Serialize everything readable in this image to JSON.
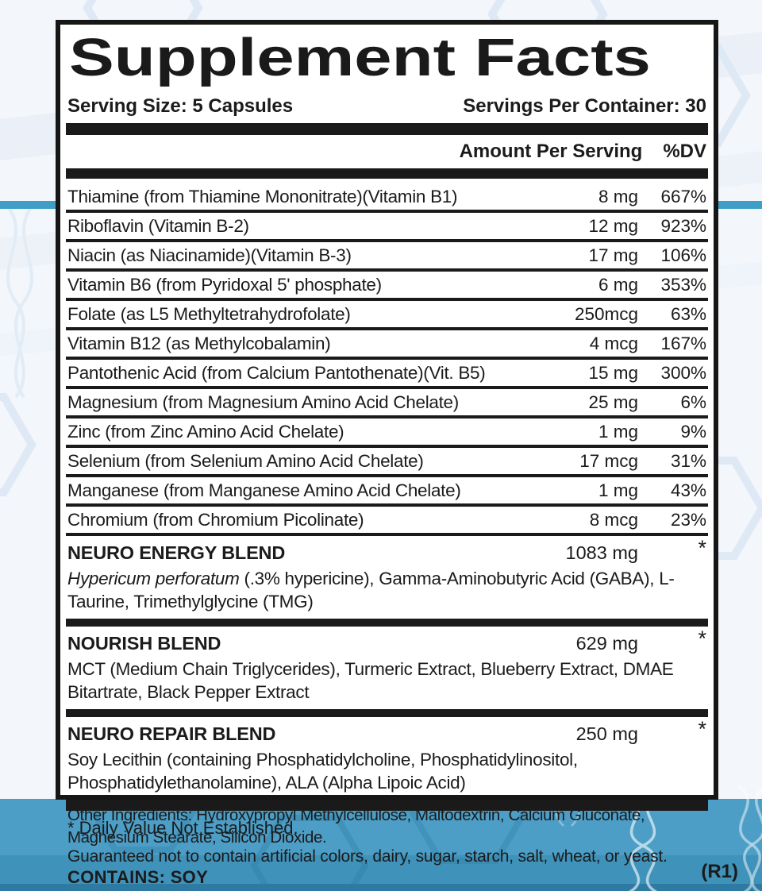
{
  "label": {
    "title": "Supplement Facts",
    "serving_size": "Serving Size: 5 Capsules",
    "servings_per_container": "Servings Per Container: 30",
    "header": {
      "amount": "Amount Per Serving",
      "dv": "%DV"
    },
    "rows": [
      {
        "name": "Thiamine (from Thiamine Mononitrate)(Vitamin B1)",
        "amount": "8 mg",
        "dv": "667%"
      },
      {
        "name": "Riboflavin (Vitamin B-2)",
        "amount": "12 mg",
        "dv": "923%"
      },
      {
        "name": "Niacin (as Niacinamide)(Vitamin B-3)",
        "amount": "17 mg",
        "dv": "106%"
      },
      {
        "name": "Vitamin B6 (from Pyridoxal 5' phosphate)",
        "amount": "6 mg",
        "dv": "353%"
      },
      {
        "name": "Folate (as L5 Methyltetrahydrofolate)",
        "amount": "250mcg",
        "dv": "63%"
      },
      {
        "name": "Vitamin B12 (as Methylcobalamin)",
        "amount": "4 mcg",
        "dv": "167%"
      },
      {
        "name": "Pantothenic Acid (from Calcium Pantothenate)(Vit. B5)",
        "amount": "15 mg",
        "dv": "300%"
      },
      {
        "name": "Magnesium (from Magnesium Amino Acid Chelate)",
        "amount": "25 mg",
        "dv": "6%"
      },
      {
        "name": "Zinc (from Zinc Amino Acid Chelate)",
        "amount": "1 mg",
        "dv": "9%"
      },
      {
        "name": "Selenium (from Selenium Amino Acid Chelate)",
        "amount": "17 mcg",
        "dv": "31%"
      },
      {
        "name": "Manganese (from Manganese Amino Acid Chelate)",
        "amount": "1 mg",
        "dv": "43%"
      },
      {
        "name": "Chromium (from Chromium Picolinate)",
        "amount": "8 mcg",
        "dv": "23%"
      }
    ],
    "blends": [
      {
        "name": "NEURO ENERGY BLEND",
        "amount": "1083 mg",
        "dv": "*",
        "desc_italic": "Hypericum perforatum",
        "desc_rest": " (.3% hypericine), Gamma-Aminobutyric Acid (GABA), L-Taurine, Trimethylglycine (TMG)"
      },
      {
        "name": "NOURISH BLEND",
        "amount": "629 mg",
        "dv": "*",
        "desc_italic": "",
        "desc_rest": "MCT (Medium Chain Triglycerides), Turmeric Extract, Blueberry Extract, DMAE Bitartrate, Black Pepper Extract"
      },
      {
        "name": "NEURO REPAIR BLEND",
        "amount": "250 mg",
        "dv": "*",
        "desc_italic": "",
        "desc_rest": "Soy Lecithin (containing Phosphatidylcholine, Phosphatidylinositol, Phosphatidylethanolamine), ALA (Alpha Lipoic Acid)"
      }
    ],
    "footnote": "* Daily Value Not Established."
  },
  "below_label": {
    "other_ingredients": "Other Ingredients: Hydroxypropyl Methylcellulose, Maltodextrin, Calcium Gluconate, Magnesium Stearate, Silicon Dioxide.",
    "guarantee": "Guaranteed not to contain artificial colors, dairy, sugar, starch, salt, wheat, or yeast.",
    "contains": "CONTAINS: SOY",
    "revision": "(R1)"
  },
  "colors": {
    "bar_black": "#1a1a1a",
    "accent_stripe": "#3f9ec6",
    "bottom_blue": "#4c9ec6",
    "contains_band_blue": "#3f92ba",
    "bottom_edge_blue": "#2d7aa2",
    "page_background": "#f3f6fa"
  }
}
